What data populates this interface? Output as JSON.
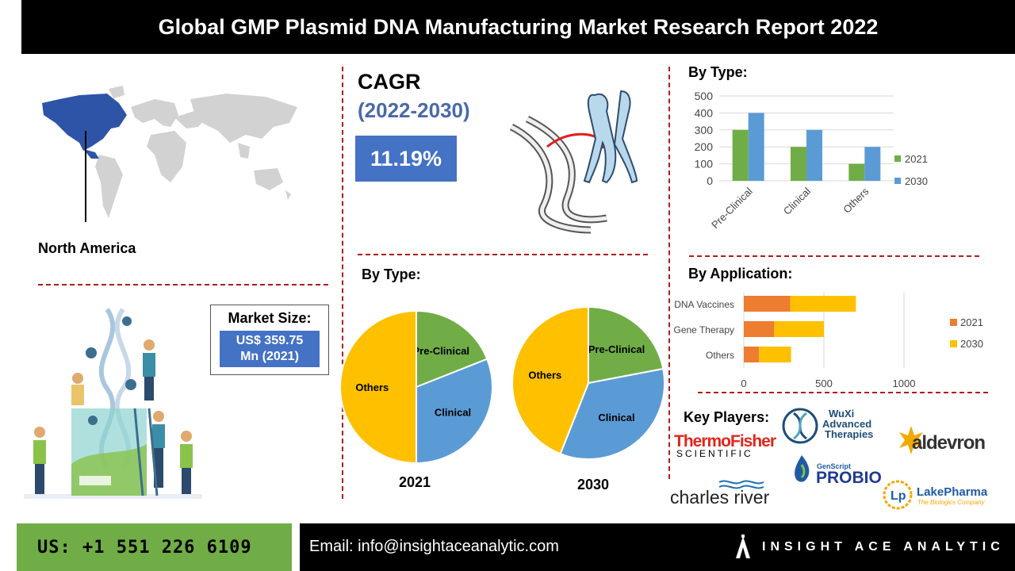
{
  "header": {
    "title": "Global GMP Plasmid DNA Manufacturing Market Research Report 2022"
  },
  "region": {
    "label": "North America"
  },
  "cagr": {
    "title": "CAGR",
    "period": "(2022-2030)",
    "value": "11.19%"
  },
  "market_size": {
    "label": "Market Size:",
    "value_line1": "US$ 359.75",
    "value_line2": "Mn (2021)"
  },
  "section_titles": {
    "by_type_top": "By Type:",
    "by_type_pies": "By Type:",
    "by_application": "By Application:",
    "key_players": "Key Players:"
  },
  "colors": {
    "green": "#70ad47",
    "blue": "#5b9bd5",
    "orange": "#ed7d31",
    "yellow": "#ffc000",
    "accent": "#4472c4",
    "divider": "#b01c1c"
  },
  "chart_data": [
    {
      "type": "bar",
      "categories": [
        "Pre-Clinical",
        "Clinical",
        "Others"
      ],
      "series": [
        {
          "name": "2021",
          "values": [
            300,
            200,
            100
          ],
          "color": "#70ad47"
        },
        {
          "name": "2030",
          "values": [
            400,
            300,
            200
          ],
          "color": "#5b9bd5"
        }
      ],
      "yticks": [
        0,
        100,
        200,
        300,
        400,
        500
      ],
      "ylim": [
        0,
        500
      ],
      "legend": "right"
    },
    {
      "type": "pie",
      "title": "2021",
      "slices": [
        {
          "label": "Pre-Clinical",
          "value": 19,
          "color": "#70ad47"
        },
        {
          "label": "Clinical",
          "value": 31,
          "color": "#5b9bd5"
        },
        {
          "label": "Others",
          "value": 50,
          "color": "#ffc000"
        }
      ]
    },
    {
      "type": "pie",
      "title": "2030",
      "slices": [
        {
          "label": "Pre-Clinical",
          "value": 22,
          "color": "#70ad47"
        },
        {
          "label": "Clinical",
          "value": 34,
          "color": "#5b9bd5"
        },
        {
          "label": "Others",
          "value": 44,
          "color": "#ffc000"
        }
      ]
    },
    {
      "type": "bar",
      "orientation": "horizontal",
      "stacked": true,
      "categories": [
        "DNA Vaccines",
        "Gene Therapy",
        "Others"
      ],
      "series": [
        {
          "name": "2021",
          "values": [
            290,
            190,
            95
          ],
          "color": "#ed7d31"
        },
        {
          "name": "2030",
          "values": [
            410,
            310,
            200
          ],
          "color": "#ffc000"
        }
      ],
      "xticks": [
        0,
        500,
        1000
      ],
      "xlim": [
        0,
        1000
      ],
      "legend": "right"
    }
  ],
  "key_players": {
    "thermo_line1": "ThermoFisher",
    "thermo_line2": "SCIENTIFIC",
    "wuxi_line1": "WuXi",
    "wuxi_line2": "Advanced",
    "wuxi_line3": "Therapies",
    "aldevron": "aldevron",
    "genscript_small": "GenScript",
    "probio": "PROBIO",
    "charles_river": "charles river",
    "lakepharma": "LakePharma",
    "lakepharma_tag": "The Biologics Company"
  },
  "footer": {
    "phone": "US: +1 551 226 6109",
    "email": "Email: info@insightaceanalytic.com",
    "brand": "INSIGHT ACE ANALYTIC"
  }
}
